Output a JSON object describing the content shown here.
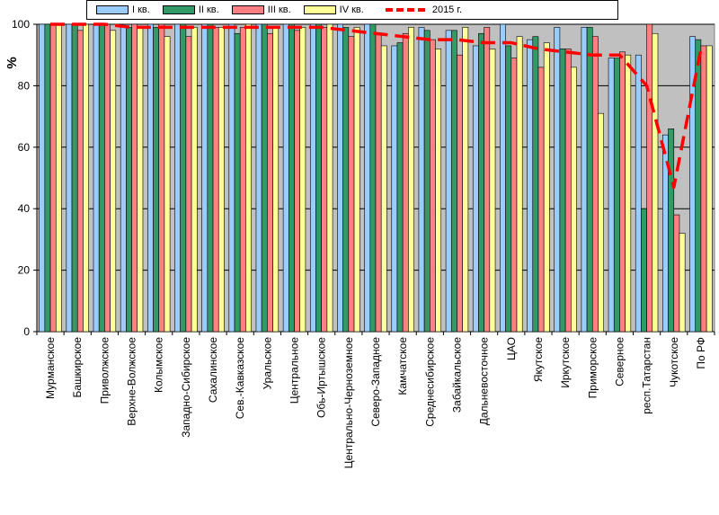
{
  "chart_data": {
    "type": "bar",
    "ylabel": "%",
    "ylim": [
      0,
      100
    ],
    "yticks": [
      0,
      20,
      40,
      60,
      80,
      100
    ],
    "grid": true,
    "legend_position": "top",
    "categories": [
      "Мурманское",
      "Башкирское",
      "Приволжское",
      "Верхне-Волжское",
      "Колымское",
      "Западно-Сибирское",
      "Сахалинское",
      "Сев.-Кавказское",
      "Уральское",
      "Центральное",
      "Обь-Иртышское",
      "Центрально-Черноземное",
      "Северо-Западное",
      "Камчатское",
      "Среднесибирское",
      "Забайкальское",
      "Дальневосточное",
      "ЦАО",
      "Якутское",
      "Иркутское",
      "Приморское",
      "Северное",
      "респ.Татарстан",
      "Чукотское",
      "По РФ"
    ],
    "series": [
      {
        "name": "I кв.",
        "color": "#99ccff",
        "values": [
          100,
          100,
          100,
          99,
          100,
          100,
          100,
          100,
          100,
          100,
          100,
          100,
          100,
          93,
          99,
          98,
          93,
          100,
          95,
          99,
          99,
          89,
          90,
          64,
          96
        ]
      },
      {
        "name": "II кв.",
        "color": "#339966",
        "values": [
          100,
          100,
          100,
          99,
          99,
          100,
          100,
          97,
          100,
          100,
          100,
          99,
          100,
          94,
          98,
          98,
          97,
          93,
          96,
          92,
          99,
          89,
          40,
          66,
          95
        ]
      },
      {
        "name": "III кв.",
        "color": "#ff8080",
        "values": [
          100,
          98,
          100,
          100,
          100,
          96,
          99,
          99,
          97,
          98,
          99,
          96,
          97,
          97,
          95,
          90,
          99,
          89,
          86,
          92,
          96,
          91,
          100,
          38,
          93
        ]
      },
      {
        "name": "IV кв.",
        "color": "#ffff99",
        "values": [
          100,
          100,
          98,
          99,
          96,
          99,
          99,
          100,
          99,
          99,
          100,
          99,
          93,
          99,
          92,
          99,
          92,
          96,
          94,
          86,
          71,
          90,
          97,
          32,
          93
        ]
      }
    ],
    "line": {
      "name": "2015 г.",
      "color": "#ff0000",
      "values": [
        100,
        100,
        100,
        99,
        99,
        99,
        99,
        99,
        99,
        99,
        99,
        98,
        97,
        96,
        95,
        95,
        94,
        94,
        92,
        91,
        90,
        90,
        80,
        47,
        92
      ]
    },
    "plot_background": "#c0c0c0"
  }
}
